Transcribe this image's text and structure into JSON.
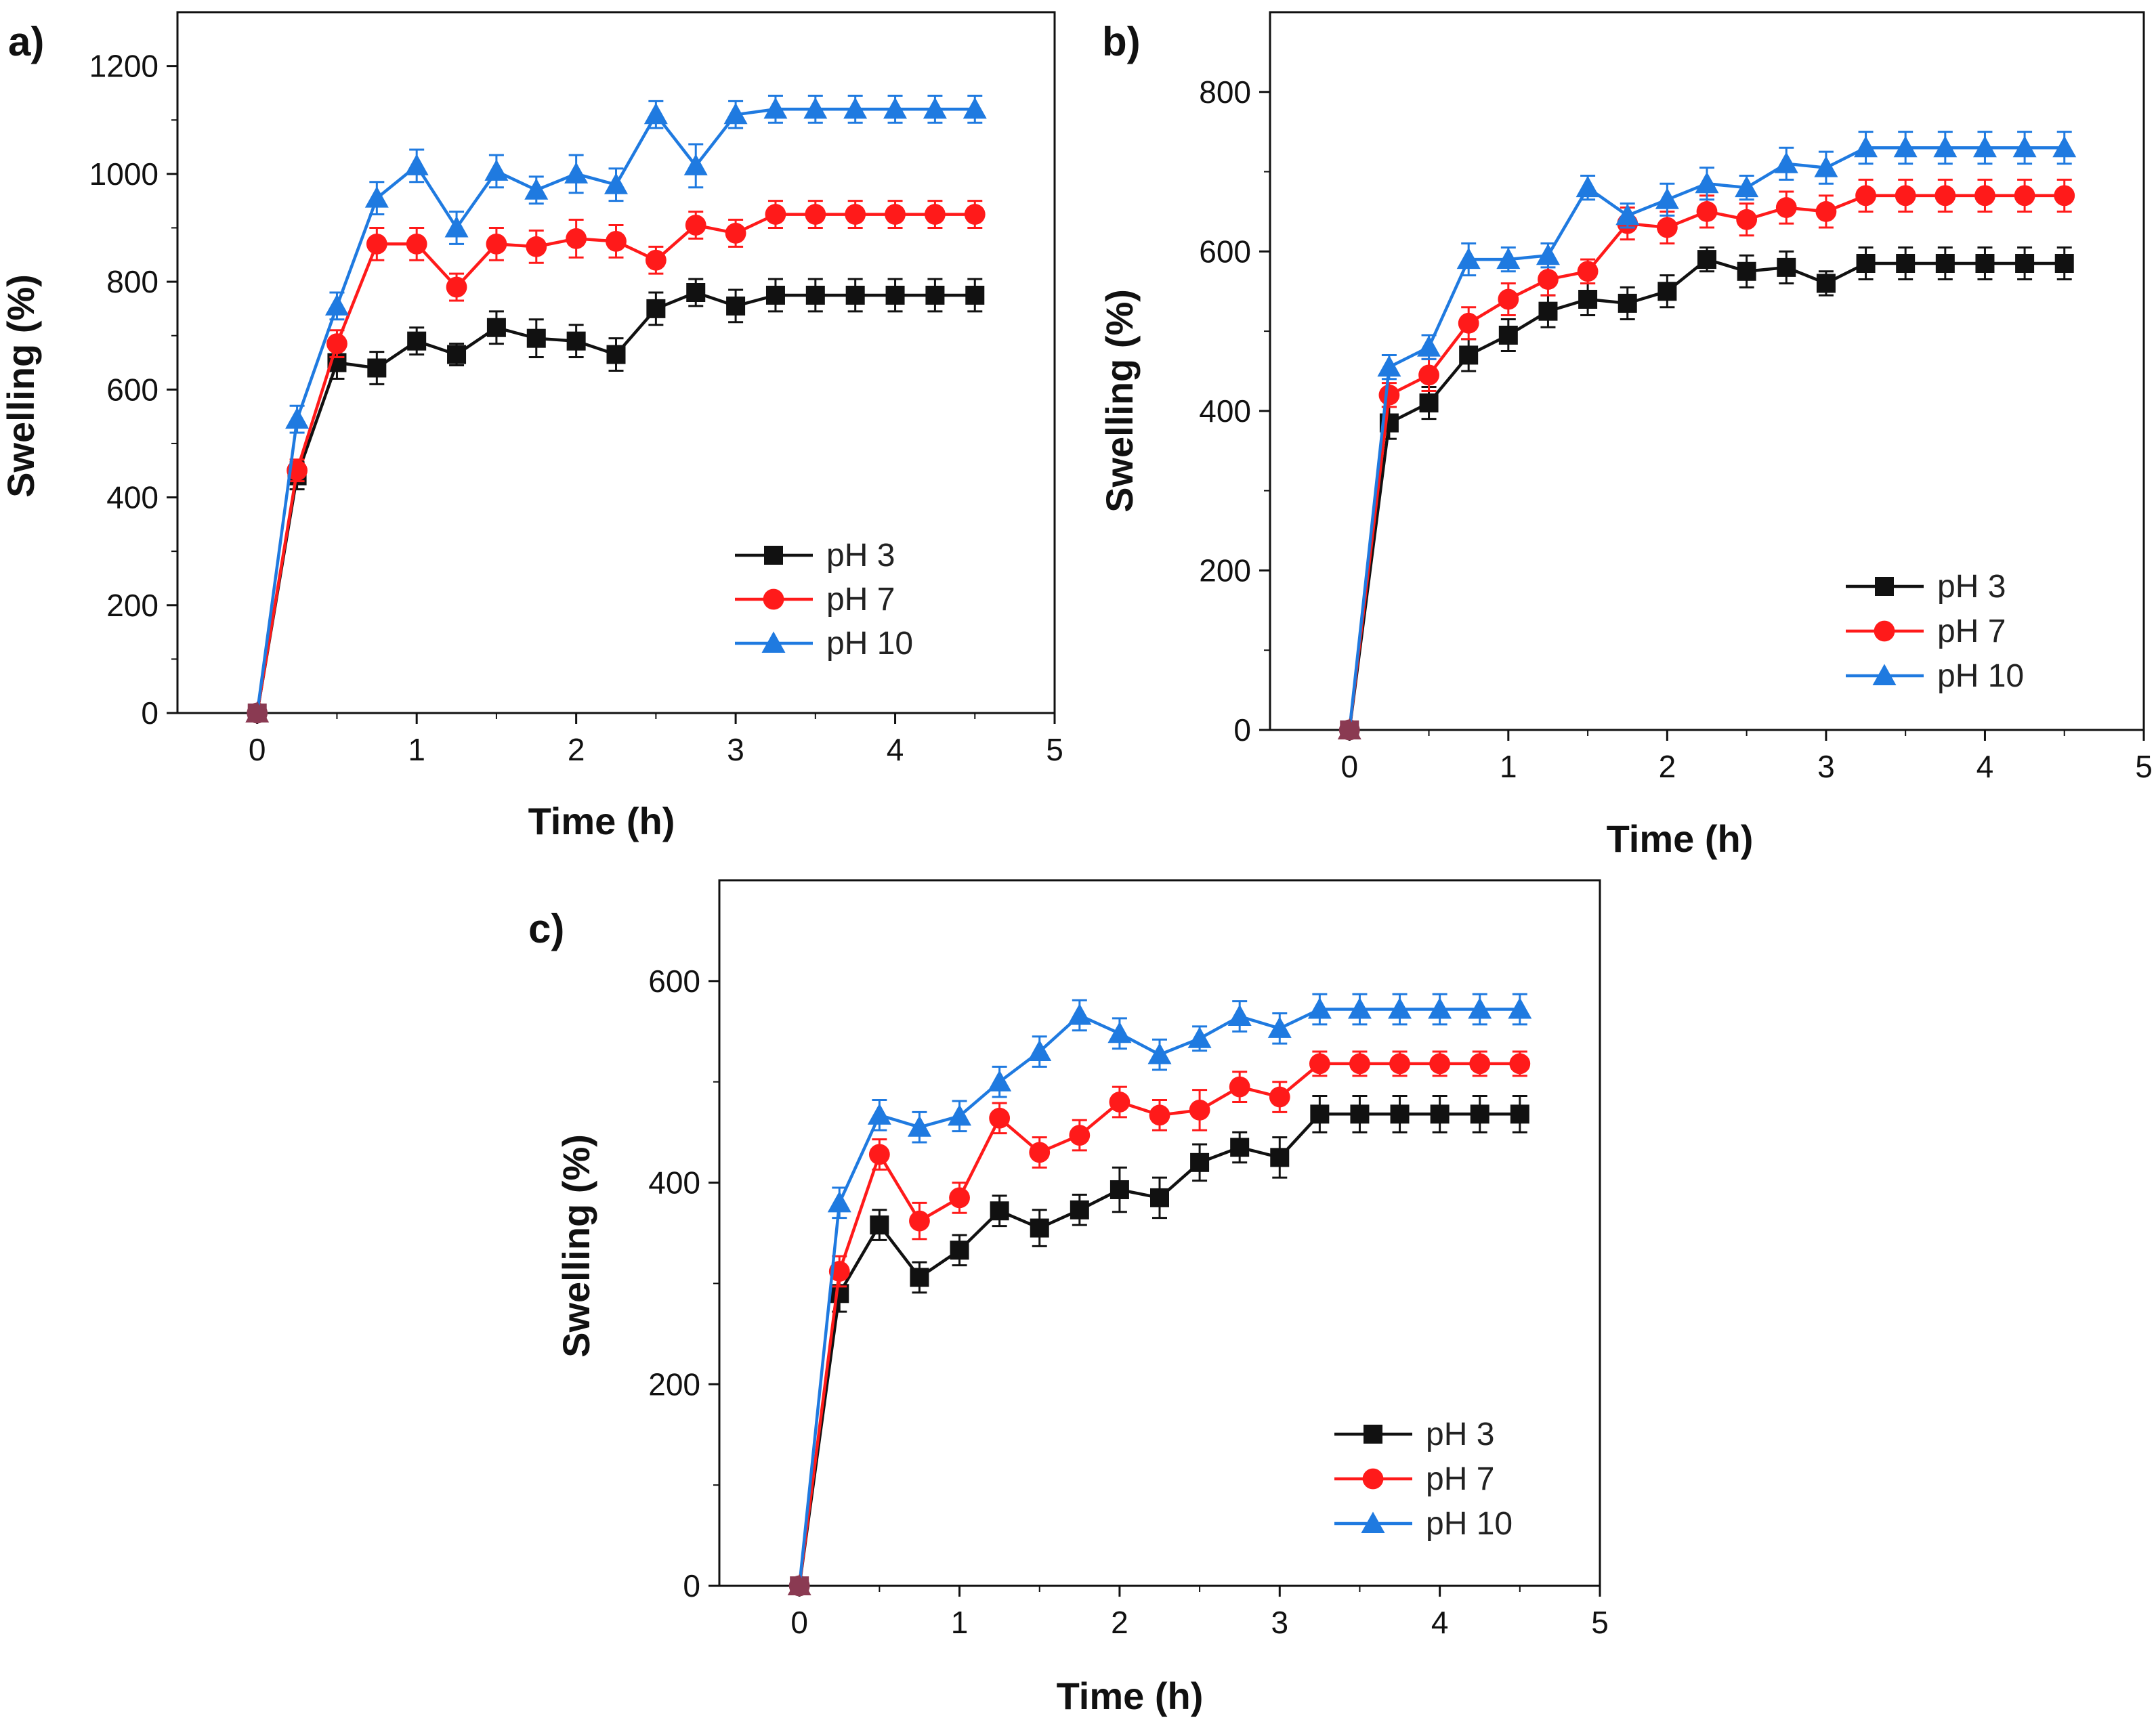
{
  "figure": {
    "panel_count": 3
  },
  "chart_data": [
    {
      "id": "a",
      "panel_label": "a)",
      "type": "line",
      "xlabel": "Time (h)",
      "ylabel": "Swelling (%)",
      "xlim": [
        -0.5,
        5
      ],
      "ylim": [
        0,
        1300
      ],
      "xticks": [
        0,
        1,
        2,
        3,
        4,
        5
      ],
      "yticks": [
        0,
        200,
        400,
        600,
        800,
        1000,
        1200
      ],
      "legend_position": "bottom-right",
      "x": [
        0,
        0.25,
        0.5,
        0.75,
        1,
        1.25,
        1.5,
        1.75,
        2,
        2.25,
        2.5,
        2.75,
        3,
        3.25,
        3.5,
        3.75,
        4,
        4.25,
        4.5
      ],
      "series": [
        {
          "name": "pH 3",
          "color": "#111111",
          "marker": "square",
          "values": [
            0,
            440,
            650,
            640,
            690,
            665,
            715,
            695,
            690,
            665,
            750,
            780,
            755,
            775,
            775,
            775,
            775,
            775,
            775
          ],
          "errors": [
            0,
            25,
            30,
            30,
            25,
            20,
            30,
            35,
            30,
            30,
            30,
            25,
            30,
            30,
            30,
            30,
            30,
            30,
            30
          ]
        },
        {
          "name": "pH 7",
          "color": "#ff1a1a",
          "marker": "circle",
          "values": [
            0,
            450,
            685,
            870,
            870,
            790,
            870,
            865,
            880,
            875,
            840,
            905,
            890,
            925,
            925,
            925,
            925,
            925,
            925
          ],
          "errors": [
            0,
            20,
            25,
            30,
            30,
            25,
            30,
            30,
            35,
            30,
            25,
            25,
            25,
            25,
            25,
            25,
            25,
            25,
            25
          ]
        },
        {
          "name": "pH 10",
          "color": "#1f7ae0",
          "marker": "triangle",
          "values": [
            0,
            545,
            755,
            955,
            1015,
            900,
            1005,
            970,
            1000,
            980,
            1110,
            1015,
            1110,
            1120,
            1120,
            1120,
            1120,
            1120,
            1120
          ],
          "errors": [
            0,
            25,
            25,
            30,
            30,
            30,
            30,
            25,
            35,
            30,
            25,
            40,
            25,
            25,
            25,
            25,
            25,
            25,
            25
          ]
        }
      ]
    },
    {
      "id": "b",
      "panel_label": "b)",
      "type": "line",
      "xlabel": "Time (h)",
      "ylabel": "Swelling (%)",
      "xlim": [
        -0.5,
        5
      ],
      "ylim": [
        0,
        900
      ],
      "xticks": [
        0,
        1,
        2,
        3,
        4,
        5
      ],
      "yticks": [
        0,
        200,
        400,
        600,
        800
      ],
      "legend_position": "bottom-right",
      "x": [
        0,
        0.25,
        0.5,
        0.75,
        1,
        1.25,
        1.5,
        1.75,
        2,
        2.25,
        2.5,
        2.75,
        3,
        3.25,
        3.5,
        3.75,
        4,
        4.25,
        4.5
      ],
      "series": [
        {
          "name": "pH 3",
          "color": "#111111",
          "marker": "square",
          "values": [
            0,
            385,
            410,
            470,
            495,
            525,
            540,
            535,
            550,
            590,
            575,
            580,
            560,
            585,
            585,
            585,
            585,
            585,
            585
          ],
          "errors": [
            0,
            20,
            20,
            20,
            20,
            20,
            20,
            20,
            20,
            15,
            20,
            20,
            15,
            20,
            20,
            20,
            20,
            20,
            20
          ]
        },
        {
          "name": "pH 7",
          "color": "#ff1a1a",
          "marker": "circle",
          "values": [
            0,
            420,
            445,
            510,
            540,
            565,
            575,
            635,
            630,
            650,
            640,
            655,
            650,
            670,
            670,
            670,
            670,
            670,
            670
          ],
          "errors": [
            0,
            15,
            20,
            20,
            20,
            20,
            15,
            20,
            20,
            20,
            20,
            20,
            20,
            20,
            20,
            20,
            20,
            20,
            20
          ]
        },
        {
          "name": "pH 10",
          "color": "#1f7ae0",
          "marker": "triangle",
          "values": [
            0,
            455,
            480,
            590,
            590,
            595,
            680,
            645,
            665,
            685,
            680,
            710,
            705,
            730,
            730,
            730,
            730,
            730,
            730
          ],
          "errors": [
            0,
            15,
            15,
            20,
            15,
            15,
            15,
            15,
            20,
            20,
            15,
            20,
            20,
            20,
            20,
            20,
            20,
            20,
            20
          ]
        }
      ]
    },
    {
      "id": "c",
      "panel_label": "c)",
      "type": "line",
      "xlabel": "Time (h)",
      "ylabel": "Swelling (%)",
      "xlim": [
        -0.5,
        5
      ],
      "ylim": [
        0,
        700
      ],
      "xticks": [
        0,
        1,
        2,
        3,
        4,
        5
      ],
      "yticks": [
        0,
        200,
        400,
        600
      ],
      "legend_position": "bottom-right",
      "x": [
        0,
        0.25,
        0.5,
        0.75,
        1,
        1.25,
        1.5,
        1.75,
        2,
        2.25,
        2.5,
        2.75,
        3,
        3.25,
        3.5,
        3.75,
        4,
        4.25,
        4.5
      ],
      "series": [
        {
          "name": "pH 3",
          "color": "#111111",
          "marker": "square",
          "values": [
            0,
            290,
            358,
            306,
            333,
            372,
            355,
            373,
            393,
            385,
            420,
            435,
            425,
            468,
            468,
            468,
            468,
            468,
            468
          ],
          "errors": [
            0,
            18,
            15,
            15,
            15,
            15,
            18,
            15,
            22,
            20,
            18,
            15,
            20,
            18,
            18,
            18,
            18,
            18,
            18
          ]
        },
        {
          "name": "pH 7",
          "color": "#ff1a1a",
          "marker": "circle",
          "values": [
            0,
            312,
            428,
            362,
            385,
            464,
            430,
            447,
            480,
            467,
            472,
            495,
            485,
            518,
            518,
            518,
            518,
            518,
            518
          ],
          "errors": [
            0,
            15,
            15,
            18,
            15,
            15,
            15,
            15,
            15,
            15,
            20,
            15,
            15,
            12,
            12,
            12,
            12,
            12,
            12
          ]
        },
        {
          "name": "pH 10",
          "color": "#1f7ae0",
          "marker": "triangle",
          "values": [
            0,
            380,
            467,
            455,
            466,
            500,
            530,
            566,
            548,
            527,
            543,
            565,
            553,
            572,
            572,
            572,
            572,
            572,
            572
          ],
          "errors": [
            0,
            15,
            15,
            15,
            15,
            15,
            15,
            15,
            15,
            15,
            12,
            15,
            15,
            15,
            15,
            15,
            15,
            15,
            15
          ]
        }
      ]
    }
  ]
}
